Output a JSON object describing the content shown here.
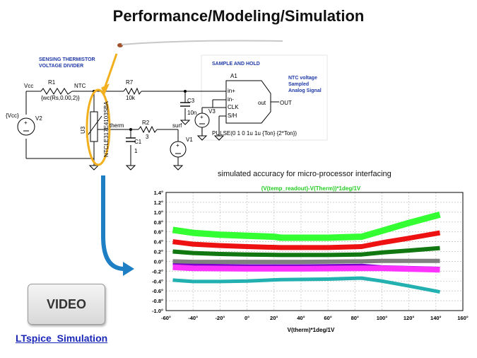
{
  "page": {
    "title": "Performance/Modeling/Simulation",
    "video_label": "VIDEO",
    "link_label": "LTspice_Simulation",
    "chart_caption": "simulated accuracy for micro-processor interfacing"
  },
  "schematic": {
    "heading_sensing_1": "SENSING THERMISTOR",
    "heading_sensing_2": "VOLTAGE DIVIDER",
    "heading_sh": "SAMPLE AND HOLD",
    "ntc_note_1": "NTC voltage",
    "ntc_note_2": "Sampled",
    "ntc_note_3": "Analog Signal",
    "vcc": "Vcc",
    "r1": "R1",
    "r1_val": "{wc(Rs,0.00,2)}",
    "ntc": "NTC",
    "r7": "R7",
    "r7_val": "10k",
    "vcc_src": "{Vcc}",
    "v2": "V2",
    "u3": "U3",
    "therm_part": "NTCLE317E4103SBA",
    "therm_net": "therm",
    "r2": "R2",
    "r2_val": "3",
    "surf": "surf",
    "c1": "C1",
    "c1_val": "1",
    "v1": "V1",
    "c3": "C3",
    "c3_val": "10n",
    "v3": "V3",
    "a1": "A1",
    "pin_in_plus": "in+",
    "pin_in_minus": "in-",
    "pin_clk": "CLK",
    "pin_sh": "S/H",
    "pin_out": "out",
    "out_net": "OUT",
    "pulse": "PULSE(0 1 0 1u 1u {Ton} {2*Ton})"
  },
  "chart_data": {
    "type": "line",
    "title": "(V(temp_readout)-V(Therm))*1deg/1V",
    "xlabel": "V(therm)*1deg/1V",
    "ylabel": "",
    "xlim": [
      -60,
      160
    ],
    "ylim": [
      -1.0,
      1.4
    ],
    "x_ticks": [
      "-60°",
      "-40°",
      "-20°",
      "0°",
      "20°",
      "40°",
      "60°",
      "80°",
      "100°",
      "120°",
      "140°",
      "160°"
    ],
    "y_ticks": [
      "1.4°",
      "1.2°",
      "1.0°",
      "0.8°",
      "0.6°",
      "0.4°",
      "0.2°",
      "0.0°",
      "-0.2°",
      "-0.4°",
      "-0.6°",
      "-0.8°",
      "-1.0°"
    ],
    "grid": true,
    "title_color": "#22cc22",
    "series": [
      {
        "color": "#33ff33",
        "width": 9,
        "points": [
          [
            -55,
            0.64
          ],
          [
            -40,
            0.58
          ],
          [
            -20,
            0.54
          ],
          [
            0,
            0.52
          ],
          [
            20,
            0.5
          ],
          [
            25,
            0.48
          ],
          [
            60,
            0.48
          ],
          [
            85,
            0.5
          ],
          [
            100,
            0.62
          ],
          [
            120,
            0.78
          ],
          [
            143,
            0.95
          ]
        ]
      },
      {
        "color": "#ee1111",
        "width": 7,
        "points": [
          [
            -55,
            0.4
          ],
          [
            -40,
            0.35
          ],
          [
            -20,
            0.32
          ],
          [
            0,
            0.3
          ],
          [
            25,
            0.28
          ],
          [
            60,
            0.28
          ],
          [
            85,
            0.3
          ],
          [
            100,
            0.38
          ],
          [
            120,
            0.47
          ],
          [
            143,
            0.58
          ]
        ]
      },
      {
        "color": "#117711",
        "width": 6,
        "points": [
          [
            -55,
            0.2
          ],
          [
            -40,
            0.17
          ],
          [
            -20,
            0.15
          ],
          [
            0,
            0.14
          ],
          [
            25,
            0.13
          ],
          [
            60,
            0.13
          ],
          [
            85,
            0.14
          ],
          [
            100,
            0.18
          ],
          [
            120,
            0.22
          ],
          [
            143,
            0.27
          ]
        ]
      },
      {
        "color": "#808080",
        "width": 6,
        "points": [
          [
            -55,
            0.0
          ],
          [
            -40,
            -0.01
          ],
          [
            0,
            -0.01
          ],
          [
            40,
            -0.01
          ],
          [
            85,
            0.0
          ],
          [
            100,
            0.01
          ],
          [
            143,
            0.01
          ]
        ]
      },
      {
        "color": "#7a00cc",
        "width": 3,
        "points": [
          [
            -55,
            -0.06
          ],
          [
            -40,
            -0.07
          ],
          [
            0,
            -0.08
          ],
          [
            40,
            -0.08
          ],
          [
            85,
            -0.07
          ],
          [
            100,
            -0.1
          ],
          [
            143,
            -0.13
          ]
        ]
      },
      {
        "color": "#ff33ff",
        "width": 8,
        "points": [
          [
            -55,
            -0.12
          ],
          [
            -40,
            -0.14
          ],
          [
            0,
            -0.15
          ],
          [
            40,
            -0.15
          ],
          [
            85,
            -0.14
          ],
          [
            100,
            -0.14
          ],
          [
            143,
            -0.17
          ]
        ]
      },
      {
        "color": "#22b0b0",
        "width": 5,
        "points": [
          [
            -55,
            -0.38
          ],
          [
            -40,
            -0.41
          ],
          [
            -20,
            -0.41
          ],
          [
            0,
            -0.4
          ],
          [
            25,
            -0.37
          ],
          [
            60,
            -0.36
          ],
          [
            85,
            -0.34
          ],
          [
            100,
            -0.4
          ],
          [
            120,
            -0.5
          ],
          [
            143,
            -0.62
          ]
        ]
      }
    ]
  }
}
